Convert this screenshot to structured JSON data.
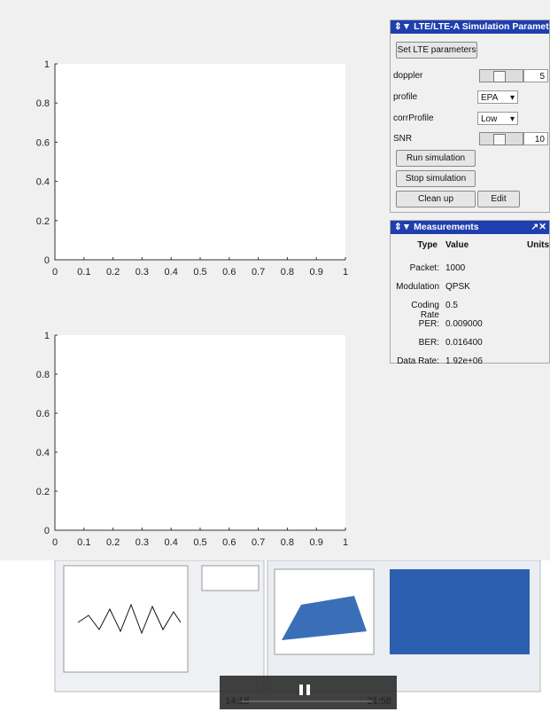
{
  "axes": [
    {
      "xticks": [
        0,
        0.1,
        0.2,
        0.3,
        0.4,
        0.5,
        0.6,
        0.7,
        0.8,
        0.9,
        1
      ],
      "yticks": [
        0,
        0.2,
        0.4,
        0.6,
        0.8,
        1
      ]
    },
    {
      "xticks": [
        0,
        0.1,
        0.2,
        0.3,
        0.4,
        0.5,
        0.6,
        0.7,
        0.8,
        0.9,
        1
      ],
      "yticks": [
        0,
        0.2,
        0.4,
        0.6,
        0.8,
        1
      ]
    }
  ],
  "parameters": {
    "title": "LTE/LTE-A Simulation Parameters",
    "set_button": "Set LTE parameters",
    "doppler": {
      "label": "doppler",
      "value": "5"
    },
    "profile": {
      "label": "profile",
      "value": "EPA"
    },
    "corrProfile": {
      "label": "corrProfile",
      "value": "Low"
    },
    "snr": {
      "label": "SNR",
      "value": "10"
    },
    "buttons": [
      "Run simulation",
      "Stop simulation",
      "Clean up",
      "Edit"
    ]
  },
  "measurements": {
    "title": "Measurements",
    "headers": [
      "Type",
      "Value",
      "Units"
    ],
    "rows": [
      [
        "Packet:",
        "1000"
      ],
      [
        "Modulation",
        "QPSK"
      ],
      [
        "Coding Rate",
        "0.5"
      ],
      [
        "PER:",
        "0.009000"
      ],
      [
        "BER:",
        "0.016400"
      ],
      [
        "Data Rate:",
        "1.92e+06"
      ]
    ]
  },
  "player": {
    "elapsed": "14:18",
    "remaining": "-21:58"
  }
}
